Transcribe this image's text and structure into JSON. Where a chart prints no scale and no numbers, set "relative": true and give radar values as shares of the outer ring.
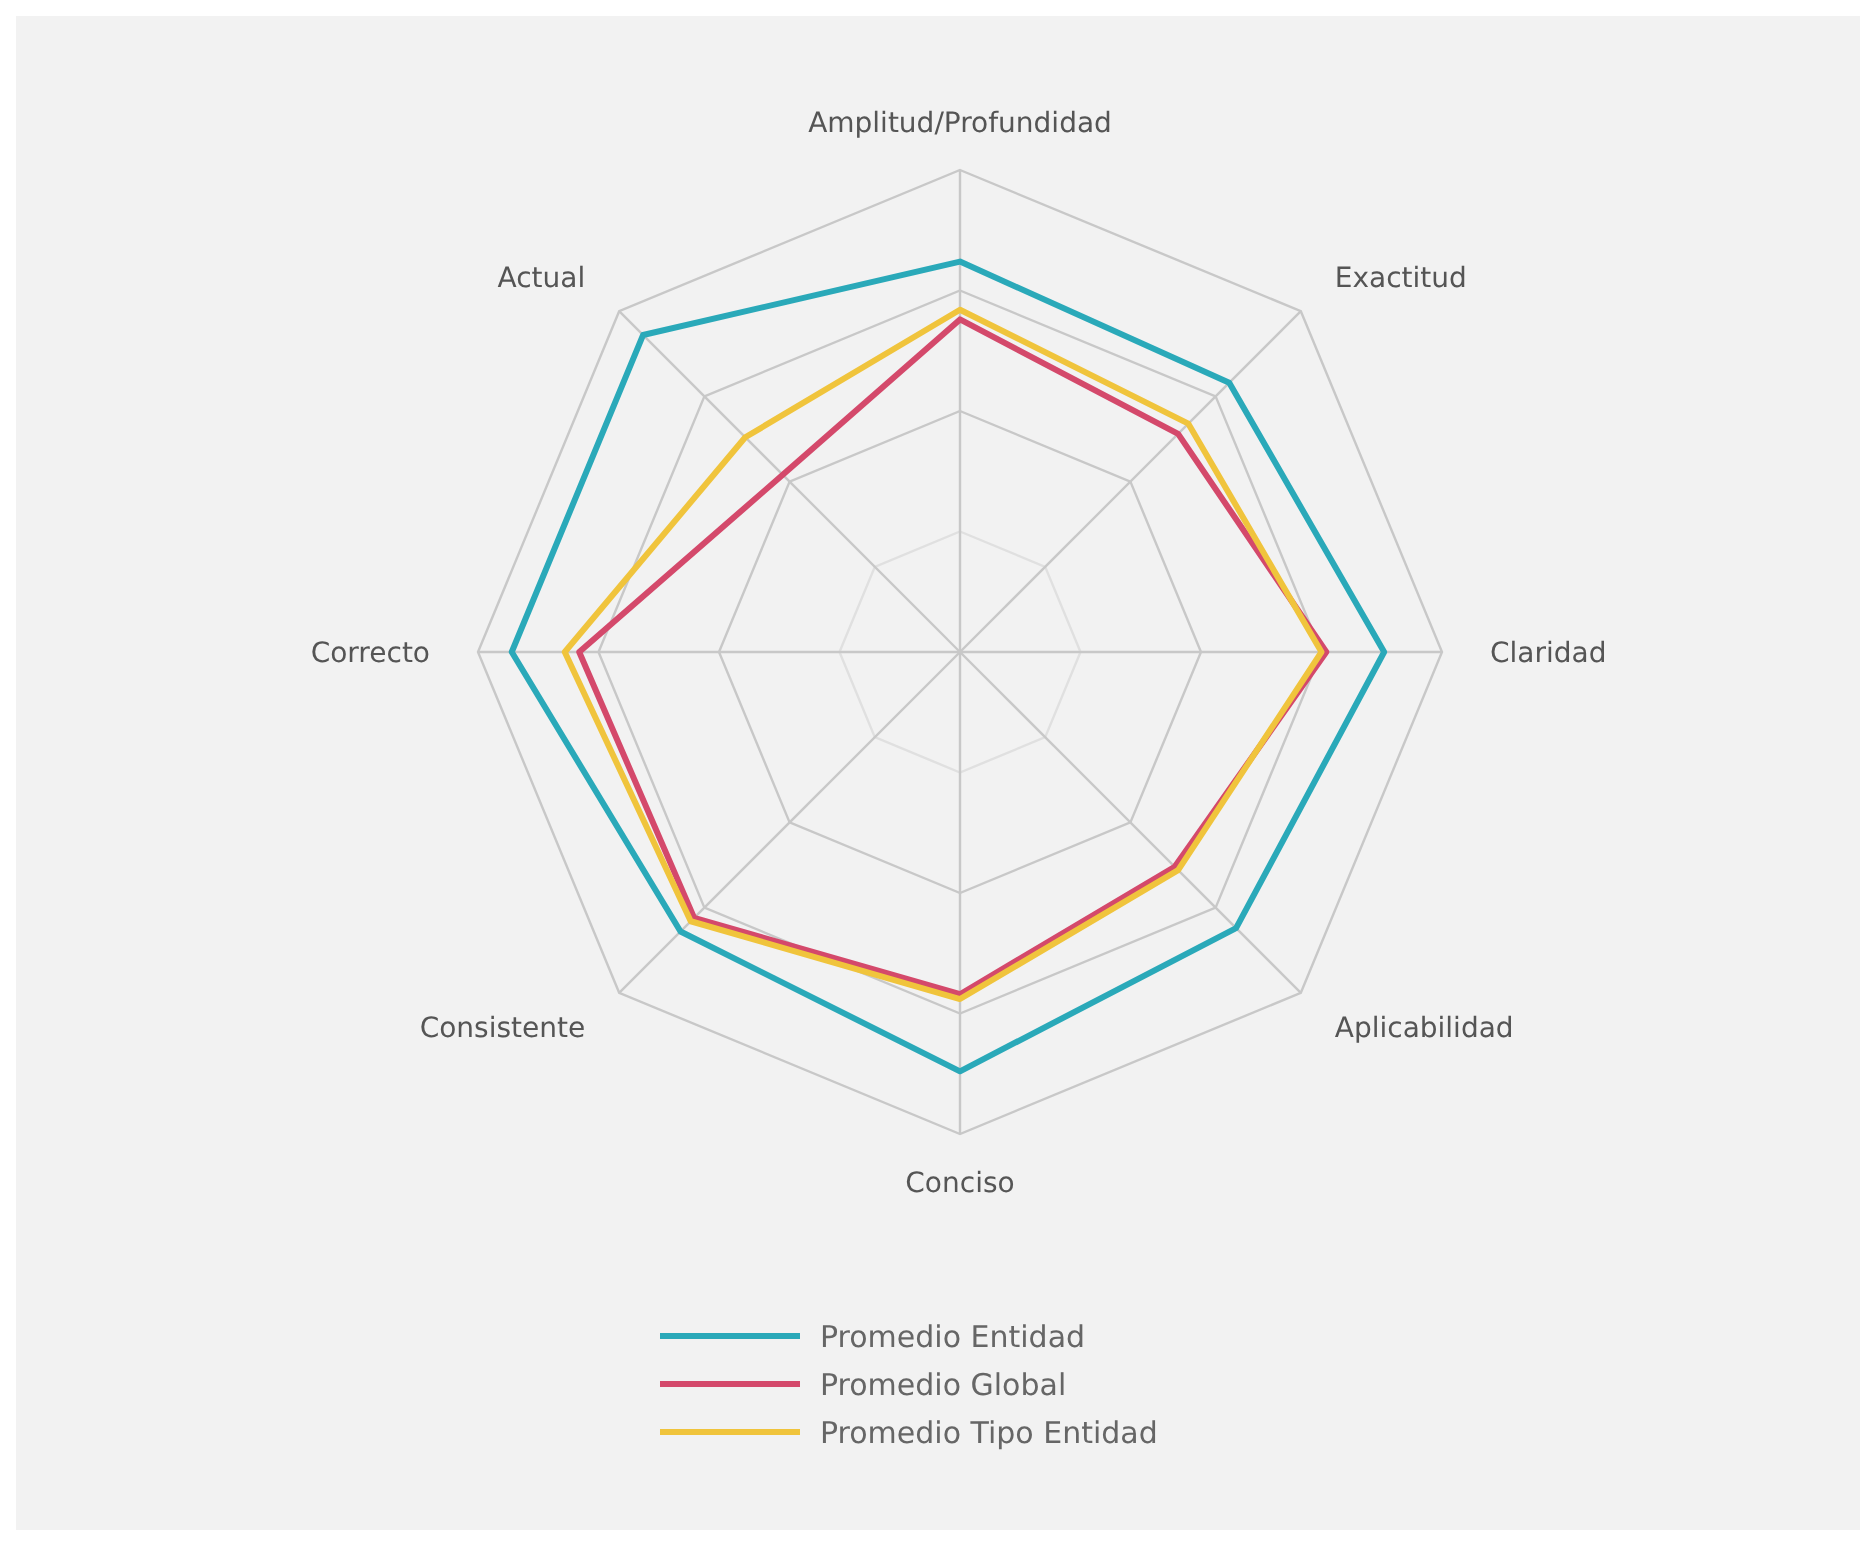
{
  "chart_data": {
    "type": "radar",
    "relative": true,
    "grid": true,
    "legend": "bottom",
    "categories": [
      "Amplitud/Profundidad",
      "Exactitud",
      "Claridad",
      "Aplicabilidad",
      "Conciso",
      "Consistente",
      "Correcto",
      "Actual"
    ],
    "series": [
      {
        "name": "Promedio Entidad",
        "color": "#2aa9b9",
        "values": [
          0.81,
          0.79,
          0.88,
          0.81,
          0.87,
          0.82,
          0.93,
          0.93
        ]
      },
      {
        "name": "Promedio Global",
        "color": "#d4496b",
        "values": [
          0.69,
          0.64,
          0.76,
          0.63,
          0.71,
          0.78,
          0.79,
          0.52
        ]
      },
      {
        "name": "Promedio Tipo Entidad",
        "color": "#f0c43c",
        "values": [
          0.71,
          0.67,
          0.75,
          0.64,
          0.72,
          0.79,
          0.82,
          0.63
        ]
      }
    ]
  }
}
